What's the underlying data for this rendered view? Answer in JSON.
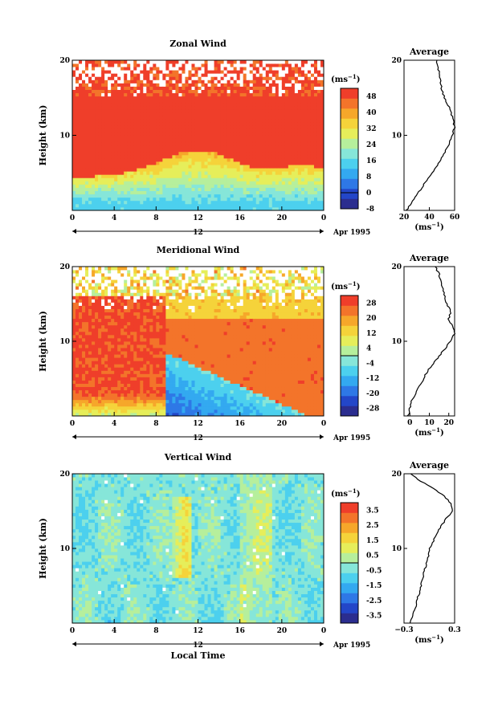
{
  "chart_data": [
    {
      "type": "heatmap",
      "title": "Zonal Wind",
      "ylabel": "Height (km)",
      "unit_label": "(ms",
      "unit_exp": "−1",
      "ylim": [
        0,
        20
      ],
      "y_ticks": [
        "20",
        "10"
      ],
      "x_ticks": [
        "0",
        "4",
        "8",
        "12",
        "16",
        "20",
        "0"
      ],
      "xlim": [
        0,
        24
      ],
      "date_marker": "12",
      "date_label": "Apr 1995",
      "colorbar_ticks": [
        "48",
        "40",
        "32",
        "24",
        "16",
        "8",
        "0",
        "-8"
      ],
      "colorbar_range": [
        -8,
        52
      ],
      "profile": {
        "title": "Average",
        "x_ticks": [
          "20",
          "40",
          "60"
        ],
        "xlim": [
          20,
          60
        ],
        "y_ticks": [
          "20",
          "10"
        ],
        "xlabel": "(ms",
        "xlabel_exp": "−1",
        "heights": [
          0,
          1,
          2,
          3,
          4,
          5,
          6,
          7,
          8,
          9,
          10,
          11,
          12,
          13,
          14,
          15,
          16,
          17,
          18,
          19,
          20
        ],
        "values": [
          22,
          26,
          30,
          34,
          38,
          42,
          46,
          50,
          53,
          56,
          58,
          60,
          59,
          57,
          55,
          52,
          50,
          49,
          48,
          47,
          46
        ]
      }
    },
    {
      "type": "heatmap",
      "title": "Meridional Wind",
      "ylabel": "Height (km)",
      "unit_label": "(ms",
      "unit_exp": "−1",
      "ylim": [
        0,
        20
      ],
      "y_ticks": [
        "20",
        "10"
      ],
      "x_ticks": [
        "0",
        "4",
        "8",
        "12",
        "16",
        "20",
        "0"
      ],
      "xlim": [
        0,
        24
      ],
      "date_marker": "12",
      "date_label": "Apr 1995",
      "colorbar_ticks": [
        "28",
        "20",
        "12",
        "4",
        "-4",
        "-12",
        "-20",
        "-28"
      ],
      "colorbar_range": [
        -32,
        32
      ],
      "profile": {
        "title": "Average",
        "x_ticks": [
          "0",
          "10",
          "20"
        ],
        "xlim": [
          -3,
          23
        ],
        "y_ticks": [
          "20",
          "10"
        ],
        "xlabel": "(ms",
        "xlabel_exp": "−1",
        "heights": [
          0,
          1,
          2,
          3,
          4,
          5,
          6,
          7,
          8,
          9,
          10,
          11,
          12,
          13,
          14,
          15,
          16,
          17,
          18,
          19,
          20
        ],
        "values": [
          -1,
          0,
          1,
          3,
          5,
          7,
          9,
          12,
          15,
          18,
          21,
          23,
          22,
          20,
          21,
          19,
          18,
          17,
          16,
          15,
          13
        ]
      }
    },
    {
      "type": "heatmap",
      "title": "Vertical Wind",
      "ylabel": "Height (km)",
      "xlabel": "Local Time",
      "unit_label": "(ms",
      "unit_exp": "−1",
      "ylim": [
        0,
        20
      ],
      "y_ticks": [
        "20",
        "10"
      ],
      "x_ticks": [
        "0",
        "4",
        "8",
        "12",
        "16",
        "20",
        "0"
      ],
      "xlim": [
        0,
        24
      ],
      "date_marker": "12",
      "date_label": "Apr 1995",
      "colorbar_ticks": [
        "3.5",
        "2.5",
        "1.5",
        "0.5",
        "-0.5",
        "-1.5",
        "-2.5",
        "-3.5"
      ],
      "colorbar_range": [
        -4,
        4
      ],
      "profile": {
        "title": "Average",
        "x_ticks": [
          "−0.3",
          "0.3"
        ],
        "xlim": [
          -0.3,
          0.3
        ],
        "y_ticks": [
          "20",
          "10"
        ],
        "xlabel": "(ms",
        "xlabel_exp": "−1",
        "heights": [
          0,
          1,
          2,
          3,
          4,
          5,
          6,
          7,
          8,
          9,
          10,
          11,
          12,
          13,
          14,
          15,
          16,
          17,
          18,
          19,
          20
        ],
        "values": [
          -0.22,
          -0.2,
          -0.16,
          -0.15,
          -0.12,
          -0.1,
          -0.08,
          -0.06,
          -0.03,
          -0.01,
          0.0,
          0.05,
          0.09,
          0.14,
          0.2,
          0.28,
          0.26,
          0.18,
          0.05,
          -0.1,
          -0.22
        ]
      }
    }
  ]
}
